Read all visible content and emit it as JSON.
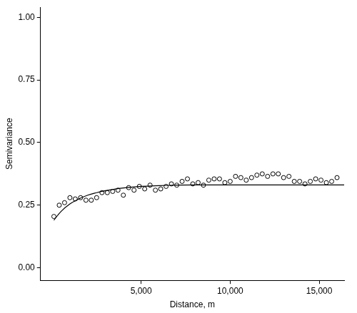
{
  "chart_data": {
    "type": "scatter",
    "x_label": "Distance, m",
    "y_label": "Semivariance",
    "xlim": [
      -650,
      16400
    ],
    "ylim": [
      -0.05,
      1.04
    ],
    "xticks": [
      {
        "value": 5000,
        "label": "5,000"
      },
      {
        "value": 10000,
        "label": "10,000"
      },
      {
        "value": 15000,
        "label": "15,000"
      }
    ],
    "yticks": [
      {
        "value": 0,
        "label": "0.00"
      },
      {
        "value": 0.25,
        "label": "0.25"
      },
      {
        "value": 0.5,
        "label": "0.50"
      },
      {
        "value": 0.75,
        "label": "0.75"
      },
      {
        "value": 1,
        "label": "1.00"
      }
    ],
    "grid": false,
    "series": [
      {
        "type": "scatter",
        "marker": "circle",
        "color": "#000000",
        "x": [
          100,
          400,
          700,
          1000,
          1300,
          1600,
          1900,
          2200,
          2500,
          2800,
          3100,
          3400,
          3700,
          4000,
          4300,
          4600,
          4900,
          5200,
          5500,
          5800,
          6100,
          6400,
          6700,
          7000,
          7300,
          7600,
          7900,
          8200,
          8500,
          8800,
          9100,
          9400,
          9700,
          10000,
          10300,
          10600,
          10900,
          11200,
          11500,
          11800,
          12100,
          12400,
          12700,
          13000,
          13300,
          13600,
          13900,
          14200,
          14500,
          14800,
          15100,
          15400,
          15700,
          16000
        ],
        "values": [
          0.205,
          0.25,
          0.26,
          0.28,
          0.275,
          0.28,
          0.27,
          0.27,
          0.28,
          0.3,
          0.3,
          0.305,
          0.31,
          0.29,
          0.32,
          0.31,
          0.325,
          0.315,
          0.33,
          0.31,
          0.315,
          0.325,
          0.335,
          0.33,
          0.345,
          0.355,
          0.335,
          0.34,
          0.33,
          0.35,
          0.355,
          0.355,
          0.34,
          0.345,
          0.365,
          0.36,
          0.35,
          0.36,
          0.37,
          0.375,
          0.365,
          0.375,
          0.375,
          0.36,
          0.365,
          0.345,
          0.345,
          0.335,
          0.345,
          0.355,
          0.35,
          0.34,
          0.345,
          0.36
        ]
      },
      {
        "type": "line",
        "line_style": "solid",
        "color": "#000000",
        "x": [
          100,
          500,
          1000,
          1500,
          2000,
          2500,
          3000,
          3500,
          4000,
          5000,
          6000,
          7000,
          8000,
          10000,
          16400
        ],
        "values": [
          0.19,
          0.225,
          0.255,
          0.275,
          0.29,
          0.3,
          0.308,
          0.314,
          0.319,
          0.325,
          0.328,
          0.33,
          0.331,
          0.331,
          0.331
        ]
      }
    ]
  }
}
